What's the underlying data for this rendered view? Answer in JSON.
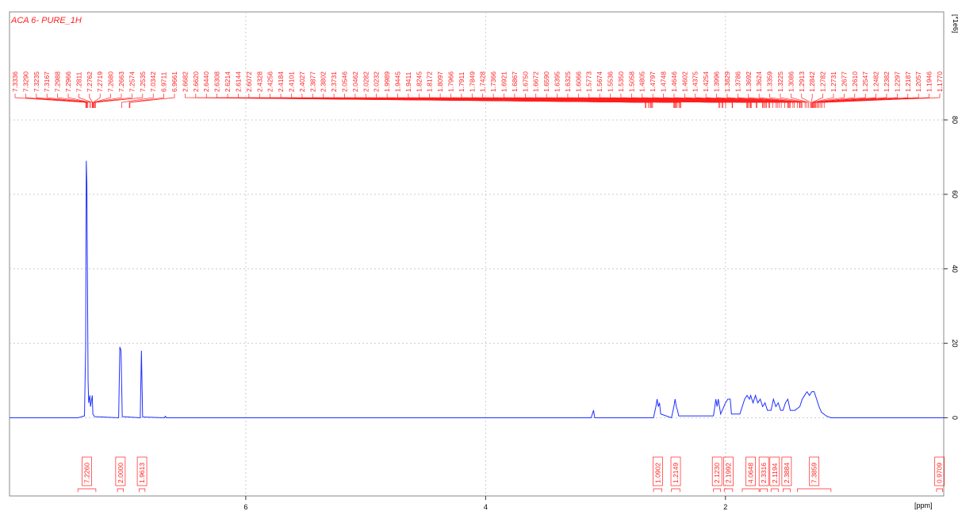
{
  "chart_data": {
    "type": "line",
    "title": "ACA 6- PURE_1H",
    "x_label": "[ppm]",
    "y_label": "[*1e6]",
    "xlim": [
      7.97,
      0.18
    ],
    "xticks": [
      6,
      4,
      2
    ],
    "ylim": [
      -21,
      109
    ],
    "yticks": [
      0,
      20,
      40,
      60,
      80
    ],
    "grid": true,
    "series": [
      {
        "name": "spectrum",
        "color": "#2030ff",
        "x": [
          7.97,
          7.4,
          7.345,
          7.335,
          7.33,
          7.325,
          7.315,
          7.31,
          7.3,
          7.295,
          7.29,
          7.28,
          7.275,
          7.26,
          7.06,
          7.05,
          7.04,
          7.03,
          6.88,
          6.87,
          6.86,
          6.68,
          6.67,
          6.66,
          3.12,
          3.1,
          3.09,
          2.6,
          2.58,
          2.57,
          2.56,
          2.55,
          2.54,
          2.45,
          2.43,
          2.42,
          2.41,
          2.4,
          2.39,
          2.1,
          2.08,
          2.07,
          2.06,
          2.04,
          2.0,
          1.98,
          1.96,
          1.95,
          1.88,
          1.84,
          1.82,
          1.8,
          1.79,
          1.77,
          1.75,
          1.73,
          1.71,
          1.69,
          1.67,
          1.65,
          1.62,
          1.6,
          1.58,
          1.56,
          1.54,
          1.52,
          1.5,
          1.48,
          1.46,
          1.42,
          1.38,
          1.36,
          1.34,
          1.32,
          1.3,
          1.28,
          1.26,
          1.24,
          1.22,
          1.2,
          1.16,
          1.12,
          0.18
        ],
        "values": [
          0,
          0,
          0.5,
          19,
          69,
          63,
          10,
          4,
          6,
          3,
          4,
          6,
          1,
          0.3,
          0,
          19,
          18,
          0.3,
          0,
          18,
          0.2,
          0,
          0.4,
          0,
          0,
          2,
          0,
          0,
          3,
          5,
          3,
          4,
          1,
          0,
          3,
          5,
          3,
          2,
          0.5,
          0.5,
          5,
          3,
          5,
          1,
          4,
          5,
          5,
          1,
          1,
          5,
          6,
          5,
          6,
          4,
          6,
          4,
          5,
          3,
          4,
          2,
          2,
          5,
          3,
          4,
          2,
          2,
          4,
          5,
          2,
          2,
          3,
          5,
          6,
          7,
          6,
          7,
          7,
          5,
          3,
          1.5,
          0.5,
          0,
          0
        ]
      }
    ],
    "peaks": {
      "values": [
        7.3336,
        7.329,
        7.3235,
        7.3167,
        7.2988,
        7.2966,
        7.2811,
        7.2762,
        7.2719,
        7.268,
        7.2663,
        7.2574,
        7.2535,
        7.0342,
        6.9711,
        6.9661,
        2.6682,
        2.662,
        2.644,
        2.6308,
        2.6214,
        2.6144,
        2.6072,
        2.4328,
        2.4256,
        2.4184,
        2.4101,
        2.4027,
        2.3877,
        2.3802,
        2.3731,
        2.0546,
        2.0462,
        2.0282,
        2.0232,
        1.9989,
        1.9445,
        1.9411,
        1.8245,
        1.8172,
        1.8097,
        1.7966,
        1.7911,
        1.7849,
        1.7428,
        1.7366,
        1.6921,
        1.6867,
        1.675,
        1.6672,
        1.659,
        1.6395,
        1.6325,
        1.6066,
        1.5773,
        1.5674,
        1.5536,
        1.535,
        1.5058,
        1.4805,
        1.4797,
        1.4748,
        1.4646,
        1.4602,
        1.4375,
        1.4254,
        1.3996,
        1.3829,
        1.3786,
        1.3692,
        1.3624,
        1.3359,
        1.3225,
        1.3086,
        1.2913,
        1.2842,
        1.2782,
        1.2731,
        1.2677,
        1.261,
        1.2547,
        1.2482,
        1.2382,
        1.2297,
        1.2187,
        1.2057,
        1.1946,
        1.177
      ],
      "value_labels": [
        "7.3336",
        "7.3290",
        "7.3235",
        "7.3167",
        "7.2988",
        "7.2966",
        "7.2811",
        "7.2762",
        "7.2719",
        "7.2680",
        "7.2663",
        "7.2574",
        "7.2535",
        "7.0342",
        "6.9711",
        "6.9661",
        "2.6682",
        "2.6620",
        "2.6440",
        "2.6308",
        "2.6214",
        "2.6144",
        "2.6072",
        "2.4328",
        "2.4256",
        "2.4184",
        "2.4101",
        "2.4027",
        "2.3877",
        "2.3802",
        "2.3731",
        "2.0546",
        "2.0462",
        "2.0282",
        "2.0232",
        "1.9989",
        "1.9445",
        "1.9411",
        "1.8245",
        "1.8172",
        "1.8097",
        "1.7966",
        "1.7911",
        "1.7849",
        "1.7428",
        "1.7366",
        "1.6921",
        "1.6867",
        "1.6750",
        "1.6672",
        "1.6590",
        "1.6395",
        "1.6325",
        "1.6066",
        "1.5773",
        "1.5674",
        "1.5536",
        "1.5350",
        "1.5058",
        "1.4805",
        "1.4797",
        "1.4748",
        "1.4646",
        "1.4602",
        "1.4375",
        "1.4254",
        "1.3996",
        "1.3829",
        "1.3786",
        "1.3692",
        "1.3624",
        "1.3359",
        "1.3225",
        "1.3086",
        "1.2913",
        "1.2842",
        "1.2782",
        "1.2731",
        "1.2677",
        "1.2610",
        "1.2547",
        "1.2482",
        "1.2382",
        "1.2297",
        "1.2187",
        "1.2057",
        "1.1946",
        "1.1770"
      ]
    },
    "integrals": [
      {
        "from": 7.4,
        "to": 7.25,
        "value": 7.226,
        "label": "7.2260"
      },
      {
        "from": 7.07,
        "to": 7.02,
        "value": 2,
        "label": "2.0000"
      },
      {
        "from": 6.89,
        "to": 6.84,
        "value": 1.9613,
        "label": "1.9613"
      },
      {
        "from": 2.6,
        "to": 2.53,
        "value": 1.0902,
        "label": "1.0902"
      },
      {
        "from": 2.45,
        "to": 2.38,
        "value": 1.2149,
        "label": "1.2149"
      },
      {
        "from": 2.1,
        "to": 2.04,
        "value": 2.123,
        "label": "2.1230"
      },
      {
        "from": 2.01,
        "to": 1.94,
        "value": 2.1992,
        "label": "2.1992"
      },
      {
        "from": 1.86,
        "to": 1.72,
        "value": 4.0648,
        "label": "4.0648"
      },
      {
        "from": 1.71,
        "to": 1.65,
        "value": 2.3316,
        "label": "2.3316"
      },
      {
        "from": 1.62,
        "to": 1.56,
        "value": 2.1194,
        "label": "2.1194"
      },
      {
        "from": 1.52,
        "to": 1.46,
        "value": 2.3884,
        "label": "2.3884"
      },
      {
        "from": 1.4,
        "to": 1.12,
        "value": 7.3859,
        "label": "7.3859"
      },
      {
        "from": 0.24,
        "to": 0.19,
        "value": 0.9709,
        "label": "0.9709"
      }
    ]
  }
}
